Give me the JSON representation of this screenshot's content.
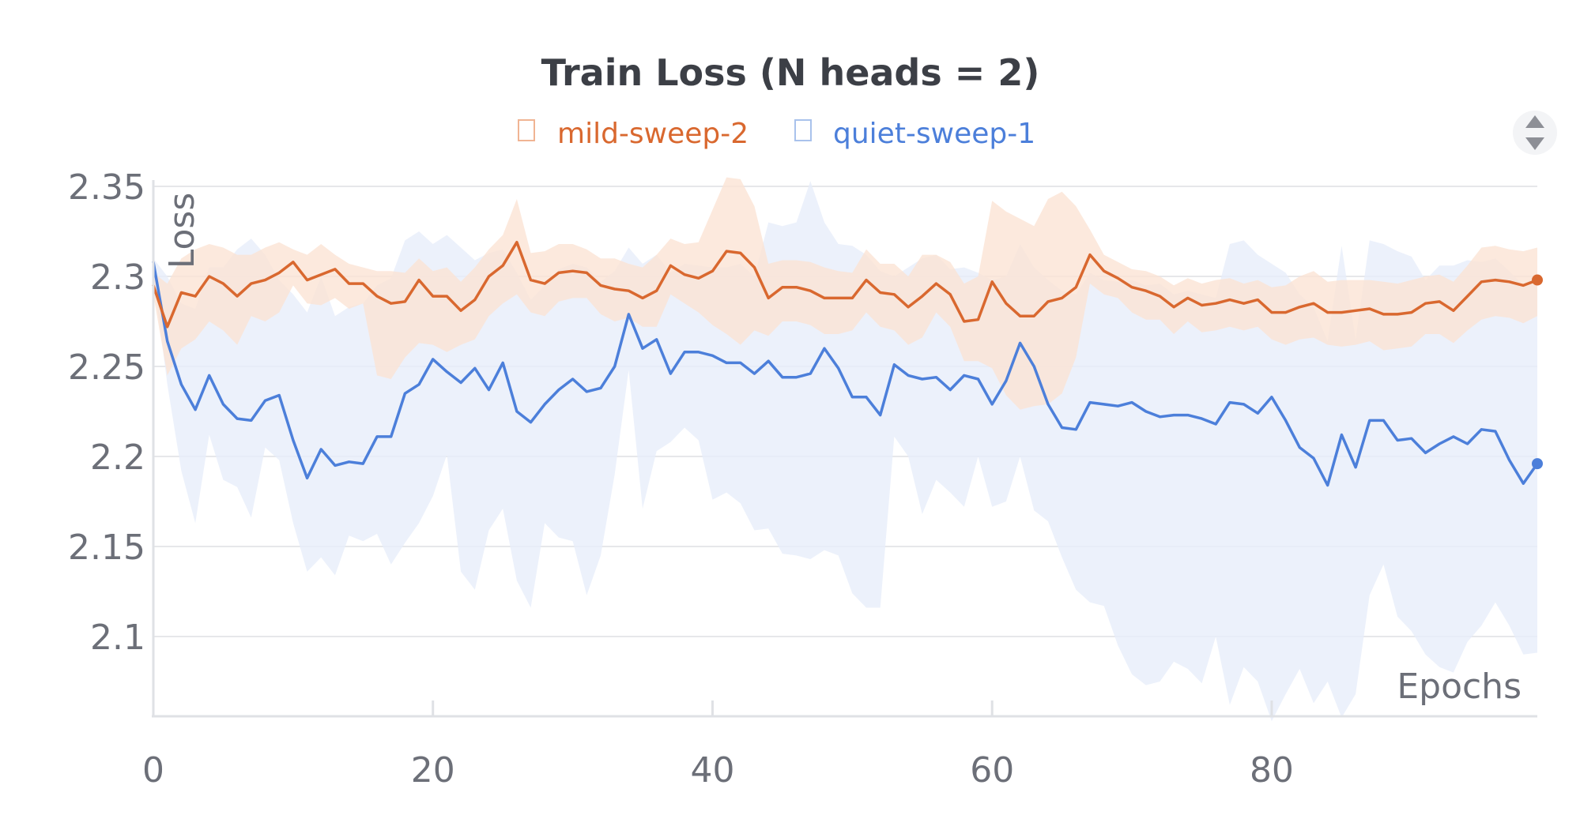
{
  "chart_data": {
    "type": "line",
    "title": "Train Loss (N heads = 2)",
    "xlabel": "Epochs",
    "ylabel": "Loss",
    "xlim": [
      0,
      99
    ],
    "ylim": [
      2.055,
      2.355
    ],
    "x_ticks": [
      0,
      20,
      40,
      60,
      80
    ],
    "y_ticks": [
      2.1,
      2.15,
      2.2,
      2.25,
      2.3,
      2.35
    ],
    "y_tick_labels": [
      "2.1",
      "2.15",
      "2.2",
      "2.25",
      "2.3",
      "2.35"
    ],
    "grid": true,
    "legend": "top-center",
    "series": [
      {
        "name": "mild-sweep-2",
        "color": "#d9682f",
        "band_color": "#fbe3d5",
        "values": [
          2.295,
          2.272,
          2.291,
          2.289,
          2.3,
          2.296,
          2.289,
          2.296,
          2.298,
          2.302,
          2.308,
          2.298,
          2.301,
          2.304,
          2.296,
          2.296,
          2.289,
          2.285,
          2.286,
          2.298,
          2.289,
          2.289,
          2.281,
          2.287,
          2.3,
          2.306,
          2.319,
          2.298,
          2.296,
          2.302,
          2.303,
          2.302,
          2.295,
          2.293,
          2.292,
          2.288,
          2.292,
          2.306,
          2.301,
          2.299,
          2.303,
          2.314,
          2.313,
          2.305,
          2.288,
          2.294,
          2.294,
          2.292,
          2.288,
          2.288,
          2.288,
          2.298,
          2.291,
          2.29,
          2.283,
          2.289,
          2.296,
          2.29,
          2.275,
          2.276,
          2.297,
          2.285,
          2.278,
          2.278,
          2.286,
          2.288,
          2.294,
          2.312,
          2.303,
          2.299,
          2.294,
          2.292,
          2.289,
          2.283,
          2.288,
          2.284,
          2.285,
          2.287,
          2.285,
          2.287,
          2.28,
          2.28,
          2.283,
          2.285,
          2.28,
          2.28,
          2.281,
          2.282,
          2.279,
          2.279,
          2.28,
          2.285,
          2.286,
          2.281,
          2.289,
          2.297,
          2.298,
          2.297,
          2.295,
          2.298
        ],
        "upper": [
          2.302,
          2.296,
          2.31,
          2.315,
          2.318,
          2.316,
          2.312,
          2.312,
          2.316,
          2.319,
          2.315,
          2.312,
          2.318,
          2.312,
          2.307,
          2.305,
          2.303,
          2.303,
          2.302,
          2.31,
          2.303,
          2.305,
          2.297,
          2.305,
          2.315,
          2.323,
          2.343,
          2.313,
          2.314,
          2.318,
          2.318,
          2.315,
          2.31,
          2.31,
          2.307,
          2.305,
          2.312,
          2.321,
          2.318,
          2.319,
          2.337,
          2.355,
          2.354,
          2.339,
          2.307,
          2.309,
          2.309,
          2.308,
          2.305,
          2.303,
          2.302,
          2.315,
          2.307,
          2.307,
          2.3,
          2.312,
          2.312,
          2.308,
          2.296,
          2.3,
          2.342,
          2.336,
          2.332,
          2.328,
          2.343,
          2.347,
          2.339,
          2.326,
          2.312,
          2.308,
          2.304,
          2.303,
          2.3,
          2.295,
          2.299,
          2.296,
          2.298,
          2.299,
          2.296,
          2.298,
          2.294,
          2.295,
          2.3,
          2.303,
          2.297,
          2.298,
          2.298,
          2.298,
          2.297,
          2.296,
          2.298,
          2.3,
          2.301,
          2.297,
          2.306,
          2.316,
          2.317,
          2.315,
          2.314,
          2.316
        ],
        "lower": [
          2.29,
          2.245,
          2.26,
          2.265,
          2.275,
          2.27,
          2.262,
          2.278,
          2.275,
          2.28,
          2.295,
          2.285,
          2.284,
          2.288,
          2.282,
          2.285,
          2.245,
          2.243,
          2.255,
          2.263,
          2.262,
          2.258,
          2.262,
          2.265,
          2.278,
          2.285,
          2.29,
          2.28,
          2.278,
          2.286,
          2.288,
          2.288,
          2.279,
          2.275,
          2.277,
          2.272,
          2.272,
          2.29,
          2.285,
          2.28,
          2.273,
          2.268,
          2.262,
          2.27,
          2.267,
          2.275,
          2.275,
          2.273,
          2.268,
          2.268,
          2.27,
          2.28,
          2.272,
          2.27,
          2.262,
          2.266,
          2.28,
          2.272,
          2.253,
          2.253,
          2.249,
          2.234,
          2.226,
          2.228,
          2.229,
          2.235,
          2.255,
          2.296,
          2.29,
          2.288,
          2.28,
          2.276,
          2.276,
          2.268,
          2.275,
          2.269,
          2.27,
          2.272,
          2.27,
          2.272,
          2.265,
          2.262,
          2.265,
          2.266,
          2.262,
          2.261,
          2.262,
          2.264,
          2.259,
          2.26,
          2.261,
          2.268,
          2.268,
          2.263,
          2.27,
          2.276,
          2.278,
          2.277,
          2.274,
          2.278
        ]
      },
      {
        "name": "quiet-sweep-1",
        "color": "#4c7fda",
        "band_color": "#e7eefa",
        "values": [
          2.308,
          2.264,
          2.24,
          2.226,
          2.245,
          2.229,
          2.221,
          2.22,
          2.231,
          2.234,
          2.209,
          2.188,
          2.204,
          2.195,
          2.197,
          2.196,
          2.211,
          2.211,
          2.235,
          2.24,
          2.254,
          2.247,
          2.241,
          2.249,
          2.237,
          2.252,
          2.225,
          2.219,
          2.229,
          2.237,
          2.243,
          2.236,
          2.238,
          2.25,
          2.279,
          2.26,
          2.265,
          2.246,
          2.258,
          2.258,
          2.256,
          2.252,
          2.252,
          2.246,
          2.253,
          2.244,
          2.244,
          2.246,
          2.26,
          2.249,
          2.233,
          2.233,
          2.223,
          2.251,
          2.245,
          2.243,
          2.244,
          2.237,
          2.245,
          2.243,
          2.229,
          2.242,
          2.263,
          2.25,
          2.229,
          2.216,
          2.215,
          2.23,
          2.229,
          2.228,
          2.23,
          2.225,
          2.222,
          2.223,
          2.223,
          2.221,
          2.218,
          2.23,
          2.229,
          2.224,
          2.233,
          2.22,
          2.205,
          2.199,
          2.184,
          2.212,
          2.194,
          2.22,
          2.22,
          2.209,
          2.21,
          2.202,
          2.207,
          2.211,
          2.207,
          2.215,
          2.214,
          2.198,
          2.185,
          2.196
        ],
        "upper": [
          2.31,
          2.3,
          2.285,
          2.282,
          2.305,
          2.305,
          2.315,
          2.321,
          2.312,
          2.298,
          2.29,
          2.28,
          2.3,
          2.278,
          2.283,
          2.285,
          2.295,
          2.299,
          2.32,
          2.325,
          2.318,
          2.323,
          2.316,
          2.309,
          2.313,
          2.315,
          2.302,
          2.287,
          2.295,
          2.304,
          2.307,
          2.305,
          2.297,
          2.303,
          2.316,
          2.307,
          2.312,
          2.302,
          2.307,
          2.306,
          2.305,
          2.305,
          2.307,
          2.3,
          2.33,
          2.328,
          2.33,
          2.353,
          2.33,
          2.318,
          2.317,
          2.312,
          2.303,
          2.3,
          2.305,
          2.31,
          2.312,
          2.304,
          2.305,
          2.302,
          2.298,
          2.3,
          2.318,
          2.305,
          2.298,
          2.292,
          2.29,
          2.302,
          2.298,
          2.297,
          2.298,
          2.295,
          2.296,
          2.29,
          2.292,
          2.29,
          2.288,
          2.318,
          2.32,
          2.312,
          2.307,
          2.302,
          2.29,
          2.283,
          2.264,
          2.317,
          2.265,
          2.32,
          2.318,
          2.314,
          2.311,
          2.298,
          2.306,
          2.306,
          2.309,
          2.308,
          2.31,
          2.303,
          2.295,
          2.302
        ],
        "lower": [
          2.3,
          2.24,
          2.192,
          2.163,
          2.212,
          2.187,
          2.183,
          2.166,
          2.205,
          2.198,
          2.163,
          2.136,
          2.144,
          2.134,
          2.156,
          2.153,
          2.157,
          2.14,
          2.152,
          2.163,
          2.178,
          2.201,
          2.136,
          2.126,
          2.159,
          2.171,
          2.131,
          2.116,
          2.163,
          2.155,
          2.153,
          2.123,
          2.145,
          2.19,
          2.248,
          2.171,
          2.203,
          2.208,
          2.216,
          2.209,
          2.176,
          2.18,
          2.174,
          2.159,
          2.16,
          2.146,
          2.145,
          2.143,
          2.148,
          2.145,
          2.124,
          2.116,
          2.116,
          2.211,
          2.2,
          2.168,
          2.187,
          2.18,
          2.172,
          2.2,
          2.172,
          2.175,
          2.2,
          2.17,
          2.164,
          2.144,
          2.126,
          2.119,
          2.117,
          2.095,
          2.079,
          2.073,
          2.075,
          2.086,
          2.082,
          2.074,
          2.1,
          2.062,
          2.083,
          2.075,
          2.053,
          2.068,
          2.082,
          2.063,
          2.075,
          2.055,
          2.068,
          2.123,
          2.14,
          2.111,
          2.103,
          2.09,
          2.083,
          2.08,
          2.097,
          2.106,
          2.119,
          2.106,
          2.09,
          2.091
        ]
      }
    ]
  }
}
